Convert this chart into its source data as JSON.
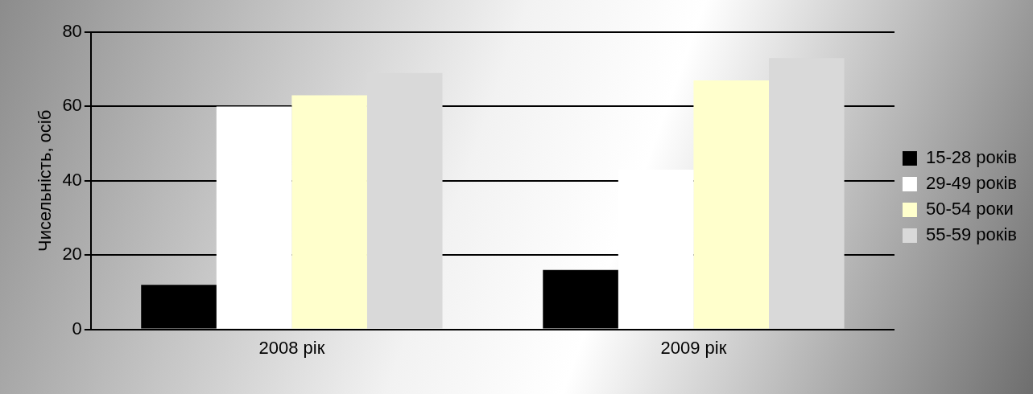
{
  "chart_data": {
    "type": "bar",
    "ylabel": "Чисельність, осіб",
    "categories": [
      "2008 рік",
      "2009 рік"
    ],
    "series": [
      {
        "name": "15-28 років",
        "color": "#000000",
        "values": [
          12,
          16
        ]
      },
      {
        "name": "29-49 років",
        "color": "#ffffff",
        "values": [
          60,
          43
        ]
      },
      {
        "name": "50-54 роки",
        "color": "#ffffcc",
        "values": [
          63,
          67
        ]
      },
      {
        "name": "55-59 років",
        "color": "#d9d9d9",
        "values": [
          69,
          73
        ]
      }
    ],
    "ylim": [
      0,
      80
    ],
    "yticks": [
      0,
      20,
      40,
      60,
      80
    ],
    "grid": "y",
    "legend": "right"
  }
}
